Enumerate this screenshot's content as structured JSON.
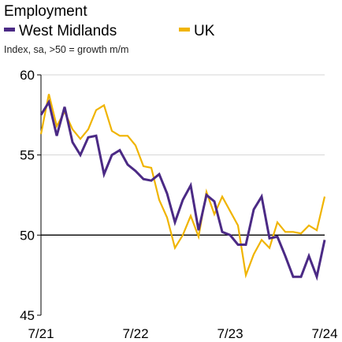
{
  "chart_data": {
    "type": "line",
    "title": "Employment",
    "subtitle": "Index, sa, >50 = growth m/m",
    "ylim": [
      45,
      60
    ],
    "y_ticks": [
      60,
      55,
      50,
      45
    ],
    "x_ticks": [
      "7/21",
      "7/22",
      "7/23",
      "7/24"
    ],
    "x_start": "7/21",
    "x_end": "7/24",
    "reference_line": 50,
    "grid": "horizontal",
    "legend_position": "top",
    "series": [
      {
        "name": "West Midlands",
        "color": "#4b2a85",
        "values": [
          57.5,
          58.3,
          56.2,
          58.0,
          55.8,
          55.0,
          56.1,
          56.2,
          53.8,
          55.0,
          55.3,
          54.4,
          54.0,
          53.5,
          53.4,
          53.8,
          52.6,
          50.8,
          52.2,
          53.1,
          50.3,
          52.5,
          52.1,
          50.2,
          50.0,
          49.4,
          49.4,
          51.6,
          52.4,
          49.8,
          49.9,
          48.7,
          47.4,
          47.4,
          48.7,
          47.4,
          49.7
        ]
      },
      {
        "name": "UK",
        "color": "#f0b400",
        "values": [
          56.3,
          58.8,
          56.8,
          57.7,
          56.6,
          56.0,
          56.6,
          57.8,
          58.1,
          56.5,
          56.2,
          56.2,
          55.6,
          54.3,
          54.2,
          52.2,
          51.1,
          49.2,
          50.0,
          51.2,
          49.9,
          52.7,
          51.3,
          52.4,
          51.5,
          50.6,
          47.5,
          48.8,
          49.7,
          49.2,
          50.8,
          50.2,
          50.2,
          50.1,
          50.6,
          50.3,
          52.4
        ]
      }
    ]
  }
}
